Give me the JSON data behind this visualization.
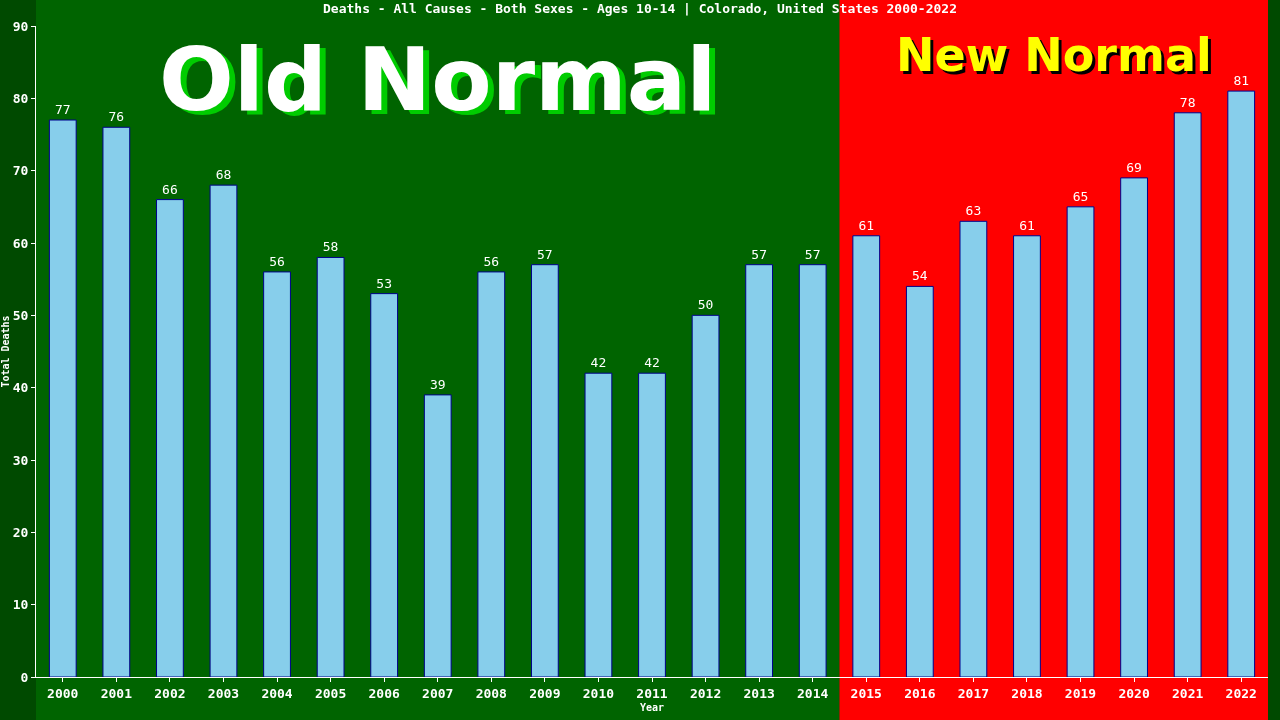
{
  "chart_data": {
    "type": "bar",
    "title": "Deaths - All Causes - Both Sexes - Ages 10-14 | Colorado, United States 2000-2022",
    "xlabel": "Year",
    "ylabel": "Total Deaths",
    "categories": [
      "2000",
      "2001",
      "2002",
      "2003",
      "2004",
      "2005",
      "2006",
      "2007",
      "2008",
      "2009",
      "2010",
      "2011",
      "2012",
      "2013",
      "2014",
      "2015",
      "2016",
      "2017",
      "2018",
      "2019",
      "2020",
      "2021",
      "2022"
    ],
    "values": [
      77,
      76,
      66,
      68,
      56,
      58,
      53,
      39,
      56,
      57,
      42,
      42,
      50,
      57,
      57,
      61,
      54,
      63,
      61,
      65,
      69,
      78,
      81
    ],
    "color": "#87ceeb",
    "ylim": [
      0,
      90
    ],
    "yticks": [
      0,
      10,
      20,
      30,
      40,
      50,
      60,
      70,
      80,
      90
    ],
    "grid": false,
    "data_labels": true,
    "bands": [
      {
        "axis": "x",
        "from": "2000",
        "to": "2014",
        "label": "Old Normal",
        "color": "#006400"
      },
      {
        "axis": "x",
        "from": "2015",
        "to": "2022",
        "label": "New Normal",
        "color": "#ff0000"
      }
    ]
  }
}
